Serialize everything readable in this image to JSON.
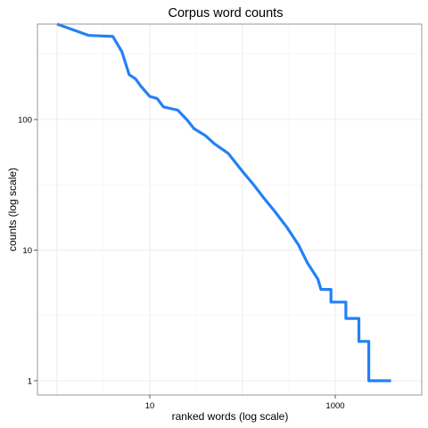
{
  "chart_data": {
    "type": "line",
    "title": "Corpus word counts",
    "xlabel": "ranked words (log scale)",
    "ylabel": "counts (log scale)",
    "x_scale": "log",
    "y_scale": "log",
    "xlim": [
      1,
      5000
    ],
    "ylim": [
      0.8,
      850
    ],
    "x_ticks": [
      {
        "value": 10,
        "label": "10"
      },
      {
        "value": 1000,
        "label": "1000"
      }
    ],
    "y_ticks": [
      {
        "value": 1,
        "label": "1"
      },
      {
        "value": 10,
        "label": "10"
      },
      {
        "value": 100,
        "label": "100"
      }
    ],
    "grid": true,
    "series": [
      {
        "color": "#2481f5",
        "points": [
          [
            1,
            640
          ],
          [
            2.2,
            440
          ],
          [
            4,
            432
          ],
          [
            5,
            330
          ],
          [
            6,
            220
          ],
          [
            7,
            205
          ],
          [
            8,
            180
          ],
          [
            10,
            150
          ],
          [
            12,
            145
          ],
          [
            14,
            125
          ],
          [
            20,
            118
          ],
          [
            25,
            100
          ],
          [
            30,
            85
          ],
          [
            40,
            75
          ],
          [
            50,
            65
          ],
          [
            70,
            55
          ],
          [
            100,
            40
          ],
          [
            130,
            32
          ],
          [
            170,
            25
          ],
          [
            220,
            20
          ],
          [
            300,
            15
          ],
          [
            400,
            11
          ],
          [
            500,
            8
          ],
          [
            650,
            6
          ],
          [
            700,
            5
          ],
          [
            900,
            5
          ],
          [
            900,
            4
          ],
          [
            1300,
            4
          ],
          [
            1300,
            3
          ],
          [
            1800,
            3
          ],
          [
            1800,
            2
          ],
          [
            2300,
            2
          ],
          [
            2300,
            1
          ],
          [
            4000,
            1
          ]
        ]
      }
    ]
  }
}
